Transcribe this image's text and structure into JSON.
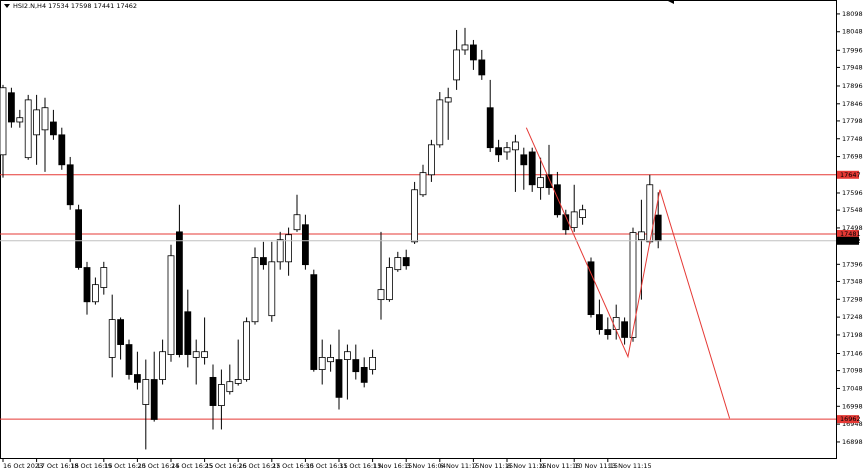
{
  "chart_data": {
    "type": "candlestick",
    "title": "HSI2.N,H4 17534 17598 17441 17462",
    "categories": [
      "16 Oct 2023",
      null,
      null,
      null,
      "17 Oct 16:15",
      null,
      null,
      null,
      "18 Oct 16:15",
      null,
      null,
      null,
      "19 Oct 16:15",
      null,
      null,
      null,
      "20 Oct 16:15",
      null,
      null,
      null,
      "24 Oct 16:15",
      null,
      null,
      null,
      "25 Oct 16:15",
      null,
      null,
      null,
      "26 Oct 16:15",
      null,
      null,
      null,
      "27 Oct 16:15",
      null,
      null,
      null,
      "30 Oct 16:15",
      null,
      null,
      null,
      "31 Oct 16:15",
      null,
      null,
      null,
      "1 Nov 16:15",
      null,
      null,
      null,
      "3 Nov 16:04",
      null,
      null,
      null,
      "6 Nov 11:15",
      null,
      null,
      null,
      "7 Nov 11:15",
      null,
      null,
      null,
      "8 Nov 11:15",
      null,
      null,
      null,
      "9 Nov 11:15",
      null,
      null,
      null,
      "10 Nov 11:15",
      null,
      null,
      null,
      "13 Nov 11:15",
      null,
      null,
      null,
      null,
      null,
      null
    ],
    "open": [
      17703,
      17877,
      17795,
      17695,
      17759,
      17773,
      17795,
      17759,
      17675,
      17549,
      17387,
      17291,
      17331,
      17135,
      17241,
      17171,
      17087,
      17003,
      17073,
      17073,
      17143,
      17487,
      17263,
      17135,
      17135,
      17079,
      17000,
      17039,
      17062,
      17073,
      17235,
      17415,
      17252,
      17403,
      17403,
      17493,
      17507,
      17367,
      17101,
      17123,
      17129,
      17129,
      17129,
      17107,
      17101,
      17297,
      17297,
      17381,
      17415,
      17459,
      17591,
      17647,
      17731,
      17851,
      17913,
      17997,
      18011,
      17969,
      17835,
      17723,
      17711,
      17717,
      17703,
      17711,
      17611,
      17647,
      17619,
      17535,
      17499,
      17527,
      17403,
      17255,
      17213,
      17213,
      17235,
      17191,
      17465,
      17459,
      17534
    ],
    "high": [
      17899,
      17891,
      17829,
      17871,
      17871,
      17863,
      17829,
      17779,
      17697,
      17563,
      17403,
      17359,
      17403,
      17311,
      17247,
      17185,
      17151,
      17129,
      17151,
      17185,
      17451,
      17563,
      17325,
      17185,
      17247,
      17115,
      17101,
      17115,
      17185,
      17247,
      17443,
      17459,
      17459,
      17487,
      17499,
      17591,
      17535,
      17381,
      17185,
      17171,
      17213,
      17171,
      17171,
      17135,
      17157,
      17487,
      17415,
      17431,
      17437,
      17627,
      17675,
      17745,
      17879,
      17891,
      18053,
      18059,
      18025,
      17997,
      17913,
      17745,
      17739,
      17759,
      17723,
      17723,
      17695,
      17731,
      17655,
      17549,
      17619,
      17563,
      17415,
      17297,
      17247,
      17283,
      17247,
      17499,
      17577,
      17647,
      17598
    ],
    "low": [
      17639,
      17779,
      17779,
      17689,
      17675,
      17655,
      17745,
      17661,
      17549,
      17381,
      17255,
      17283,
      17311,
      17079,
      17129,
      17073,
      17045,
      16877,
      16955,
      17059,
      17123,
      17135,
      17107,
      17059,
      17115,
      16933,
      16933,
      17031,
      17056,
      17067,
      17227,
      17381,
      17235,
      17381,
      17364,
      17487,
      17381,
      17095,
      17059,
      17095,
      16989,
      17017,
      17073,
      17051,
      17087,
      17241,
      17291,
      17375,
      17381,
      17453,
      17585,
      17627,
      17723,
      17745,
      17885,
      17983,
      17941,
      17913,
      17711,
      17683,
      17689,
      17599,
      17605,
      17599,
      17577,
      17591,
      17527,
      17479,
      17487,
      17507,
      17247,
      17199,
      17185,
      17185,
      17171,
      17179,
      17297,
      17453,
      17441
    ],
    "close": [
      17891,
      17795,
      17807,
      17857,
      17829,
      17835,
      17759,
      17675,
      17563,
      17387,
      17291,
      17339,
      17387,
      17241,
      17171,
      17087,
      17065,
      17073,
      16961,
      17151,
      17420,
      17143,
      17143,
      17151,
      17151,
      17000,
      17059,
      17067,
      17073,
      17235,
      17415,
      17395,
      17403,
      17465,
      17479,
      17535,
      17395,
      17101,
      17135,
      17135,
      17023,
      17151,
      17095,
      17065,
      17135,
      17325,
      17387,
      17415,
      17392,
      17605,
      17653,
      17731,
      17857,
      17863,
      17997,
      18011,
      17969,
      17927,
      17723,
      17703,
      17723,
      17739,
      17675,
      17619,
      17639,
      17611,
      17535,
      17493,
      17543,
      17549,
      17255,
      17213,
      17199,
      17247,
      17191,
      17485,
      17487,
      17619,
      17462
    ],
    "ylim": [
      16853,
      18137
    ],
    "yticks": [
      18098,
      18048,
      17996,
      17948,
      17896,
      17846,
      17798,
      17748,
      17698,
      17596,
      17548,
      17498,
      17396,
      17348,
      17298,
      17248,
      17198,
      17146,
      17098,
      17048,
      16998,
      16948,
      16898
    ],
    "levels": [
      {
        "value": 17647,
        "color": "#e53935"
      },
      {
        "value": 17481,
        "color": "#e53935"
      },
      {
        "value": 16962,
        "color": "#e53935"
      }
    ],
    "trendline": {
      "x": [
        62.3,
        74.4,
        78.2,
        86.5
      ],
      "values": [
        17779,
        17137,
        17605,
        16964
      ],
      "color": "#e53935"
    }
  }
}
